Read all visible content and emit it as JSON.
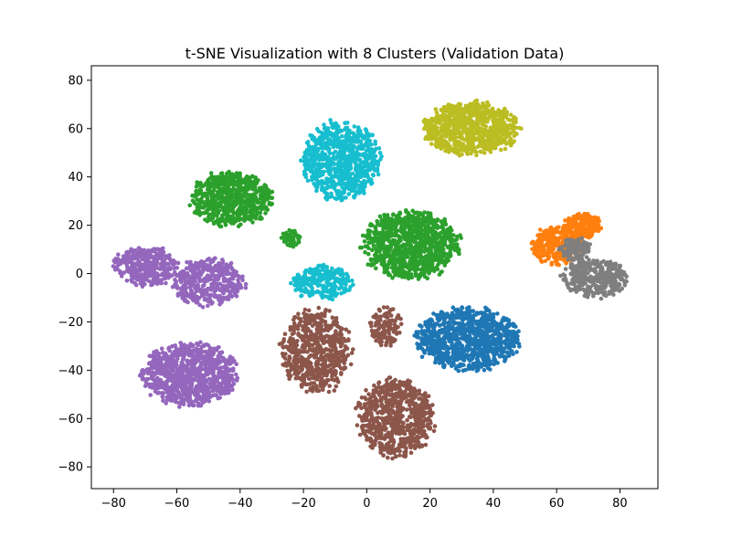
{
  "chart_data": {
    "type": "scatter",
    "title": "t-SNE Visualization with 8 Clusters (Validation Data)",
    "xlabel": "",
    "ylabel": "",
    "xlim": [
      -87,
      92
    ],
    "ylim": [
      -89,
      86
    ],
    "xticks": [
      -80,
      -60,
      -40,
      -20,
      0,
      20,
      40,
      60,
      80
    ],
    "yticks": [
      -80,
      -60,
      -40,
      -20,
      0,
      20,
      40,
      60,
      80
    ],
    "grid": false,
    "legend": "none",
    "series": [
      {
        "name": "cluster-blue",
        "color": "#1f77b4",
        "blobs": [
          {
            "cx": 32,
            "cy": -27,
            "rx": 16,
            "ry": 13,
            "n": 900
          }
        ]
      },
      {
        "name": "cluster-orange",
        "color": "#ff7f0e",
        "blobs": [
          {
            "cx": 60,
            "cy": 12,
            "rx": 8,
            "ry": 8,
            "n": 300
          },
          {
            "cx": 68,
            "cy": 20,
            "rx": 6,
            "ry": 5,
            "n": 200
          }
        ]
      },
      {
        "name": "cluster-green",
        "color": "#2ca02c",
        "blobs": [
          {
            "cx": -43,
            "cy": 31,
            "rx": 13,
            "ry": 11,
            "n": 650
          },
          {
            "cx": 14,
            "cy": 12,
            "rx": 15,
            "ry": 14,
            "n": 950
          },
          {
            "cx": -24,
            "cy": 15,
            "rx": 3,
            "ry": 4,
            "n": 50
          }
        ]
      },
      {
        "name": "cluster-brown",
        "color": "#8c564b",
        "blobs": [
          {
            "cx": -16,
            "cy": -32,
            "rx": 11,
            "ry": 17,
            "n": 600
          },
          {
            "cx": 9,
            "cy": -60,
            "rx": 12,
            "ry": 16,
            "n": 700
          },
          {
            "cx": 6,
            "cy": -22,
            "rx": 5,
            "ry": 8,
            "n": 120
          }
        ]
      },
      {
        "name": "cluster-purple",
        "color": "#9467bd",
        "blobs": [
          {
            "cx": -70,
            "cy": 3,
            "rx": 10,
            "ry": 8,
            "n": 350
          },
          {
            "cx": -50,
            "cy": -4,
            "rx": 11,
            "ry": 10,
            "n": 400
          },
          {
            "cx": -56,
            "cy": -42,
            "rx": 15,
            "ry": 13,
            "n": 900
          }
        ]
      },
      {
        "name": "cluster-gray",
        "color": "#7f7f7f",
        "blobs": [
          {
            "cx": 72,
            "cy": -2,
            "rx": 10,
            "ry": 8,
            "n": 350
          },
          {
            "cx": 66,
            "cy": 10,
            "rx": 5,
            "ry": 5,
            "n": 100
          }
        ]
      },
      {
        "name": "cluster-olive",
        "color": "#bcbd22",
        "blobs": [
          {
            "cx": 33,
            "cy": 60,
            "rx": 15,
            "ry": 11,
            "n": 800
          }
        ]
      },
      {
        "name": "cluster-cyan",
        "color": "#17becf",
        "blobs": [
          {
            "cx": -8,
            "cy": 47,
            "rx": 12,
            "ry": 16,
            "n": 800
          },
          {
            "cx": -14,
            "cy": -4,
            "rx": 10,
            "ry": 7,
            "n": 250
          }
        ]
      }
    ]
  }
}
